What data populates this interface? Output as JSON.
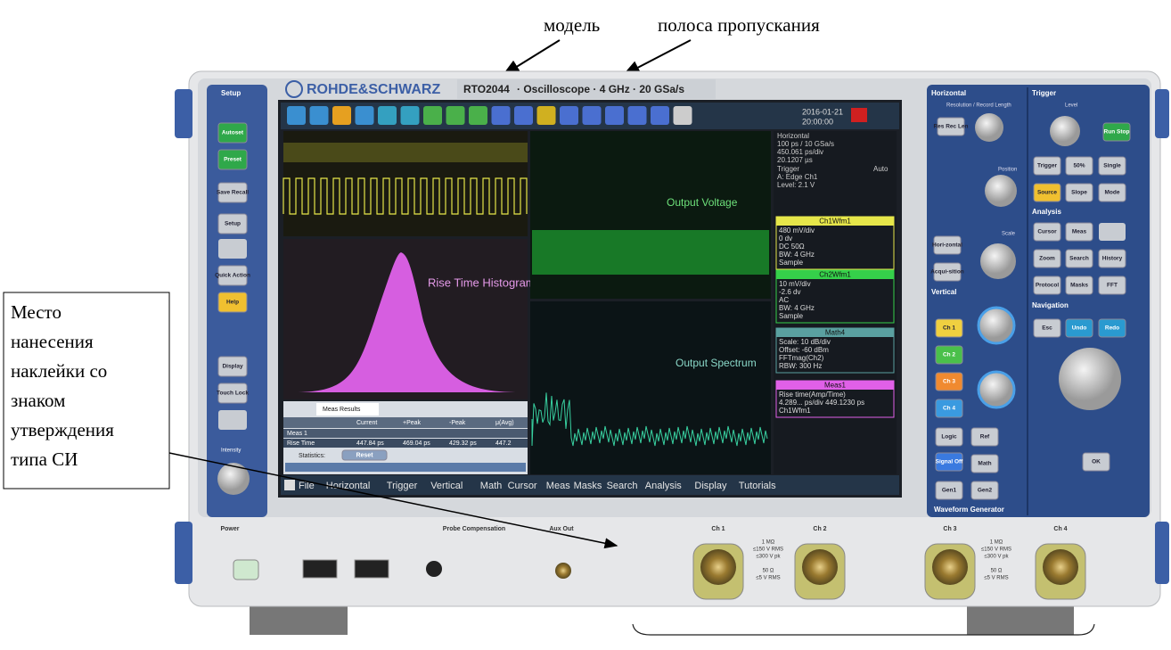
{
  "annotations": {
    "model": "модель",
    "bandwidth": "полоса пропускания",
    "sticker": [
      "Место",
      "нанесения",
      "наклейки со",
      "знаком",
      "утверждения",
      "типа СИ"
    ]
  },
  "header": {
    "brand": "ROHDE&SCHWARZ",
    "model": "RTO2044",
    "description": "· Oscilloscope · 4 GHz · 20 GSa/s"
  },
  "left_panel": {
    "title": "Setup",
    "buttons": [
      "Autoset",
      "Preset",
      "Save Recall",
      "Setup",
      "Quick Action",
      "Help",
      "Display",
      "Touch Lock"
    ],
    "knob": "Intensity"
  },
  "screen": {
    "date": "2016-01-21",
    "time": "20:00:00",
    "labels": [
      "Output Voltage",
      "Rise Time Histogram",
      "Output Spectrum"
    ],
    "info": {
      "horizontal": [
        "Horizontal",
        "100 ps / 10 GSa/s",
        "450.061 ps/div",
        "20.1207 µs"
      ],
      "trigger": [
        "Trigger",
        "Auto",
        "A: Edge Ch1",
        "Level: 2.1 V"
      ],
      "boxes": [
        {
          "title": "Ch1Wfm1",
          "lines": [
            "480 mV/div",
            "0 dv",
            "DC 50Ω",
            "BW: 4 GHz",
            "Sample"
          ]
        },
        {
          "title": "Ch2Wfm1",
          "lines": [
            "10 mV/div",
            "-2.6 dv",
            "AC",
            "BW: 4 GHz",
            "Sample"
          ]
        },
        {
          "title": "Math4",
          "lines": [
            "Scale: 10 dB/div",
            "Offset: -60 dBm",
            "FFTmag(Ch2)",
            "RBW: 300 Hz"
          ]
        },
        {
          "title": "Meas1",
          "lines": [
            "Rise time(Amp/Time)",
            "4.289... ps/div 449.1230 ps",
            "Ch1Wfm1"
          ]
        }
      ]
    },
    "meas_table": {
      "tab": "Meas Results",
      "headers": [
        "Current",
        "+Peak",
        "-Peak",
        "μ(Avg)"
      ],
      "rows": [
        [
          "Meas 1"
        ],
        [
          "Rise Time",
          "447.84 ps",
          "469.04 ps",
          "429.32 ps",
          "447.2"
        ]
      ],
      "statistics": "Statistics:",
      "reset": "Reset"
    },
    "menu": [
      "File",
      "Horizontal",
      "Trigger",
      "Vertical",
      "Math",
      "Cursor",
      "Meas",
      "Masks",
      "Search",
      "Analysis",
      "Display",
      "Tutorials"
    ]
  },
  "right_panel": {
    "sections": [
      "Horizontal",
      "Trigger",
      "Analysis",
      "Navigation",
      "Vertical",
      "Waveform Generator"
    ],
    "knobs": [
      "Resolution / Record Length",
      "Level",
      "Position",
      "Scale"
    ],
    "buttons": [
      "Res Rec Len",
      "Run Stop",
      "Trigger",
      "50%",
      "Single",
      "Source",
      "Slope",
      "Mode",
      "Cursor",
      "Meas",
      "Zoom",
      "Search",
      "History",
      "Protocol",
      "Masks",
      "FFT",
      "Esc",
      "Undo",
      "Redo",
      "Hori-zontal",
      "Acqui-sition",
      "Ch 1",
      "Ch 2",
      "Ch 3",
      "Ch 4",
      "Logic",
      "Ref",
      "Signal Off",
      "Math",
      "Gen1",
      "Gen2",
      "OK"
    ]
  },
  "front": {
    "labels": [
      "Power",
      "Probe Compensation",
      "Aux Out",
      "Ch 1",
      "Ch 2",
      "Ch 3",
      "Ch 4"
    ],
    "spec_high": [
      "1 MΩ",
      "≤150 V RMS",
      "≤300 V pk"
    ],
    "spec_low": [
      "50 Ω",
      "≤5 V RMS"
    ]
  }
}
